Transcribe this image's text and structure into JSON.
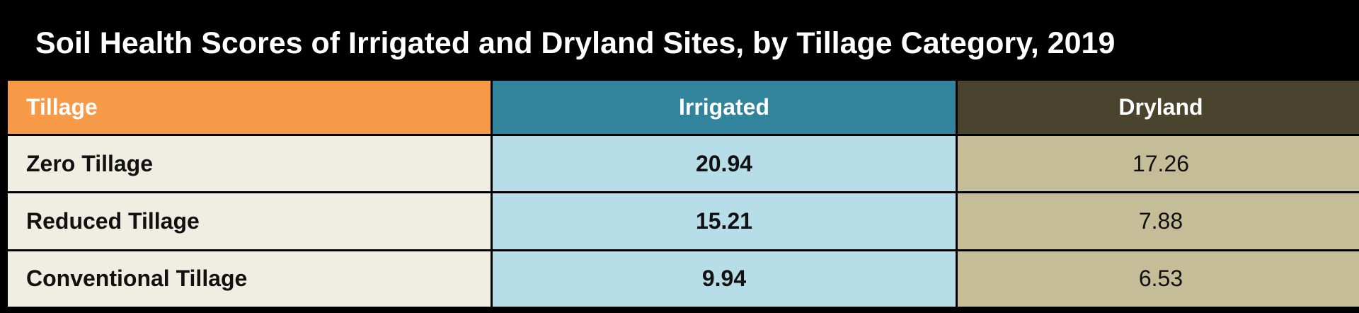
{
  "title": "Soil Health Scores of Irrigated and Dryland Sites, by Tillage Category, 2019",
  "colors": {
    "background": "#000000",
    "header_tillage": "#f79a48",
    "header_irrigated": "#31849b",
    "header_dryland": "#4a432e",
    "cell_tillage": "#f0ede3",
    "cell_irrigated": "#b7dde8",
    "cell_dryland": "#c5bd98"
  },
  "chart_data": {
    "type": "table",
    "title": "Soil Health Scores of Irrigated and Dryland Sites, by Tillage Category, 2019",
    "columns": [
      "Tillage",
      "Irrigated",
      "Dryland"
    ],
    "rows": [
      {
        "tillage": "Zero Tillage",
        "irrigated": "20.94",
        "dryland": "17.26"
      },
      {
        "tillage": "Reduced Tillage",
        "irrigated": "15.21",
        "dryland": "7.88"
      },
      {
        "tillage": "Conventional Tillage",
        "irrigated": "9.94",
        "dryland": "6.53"
      }
    ]
  }
}
